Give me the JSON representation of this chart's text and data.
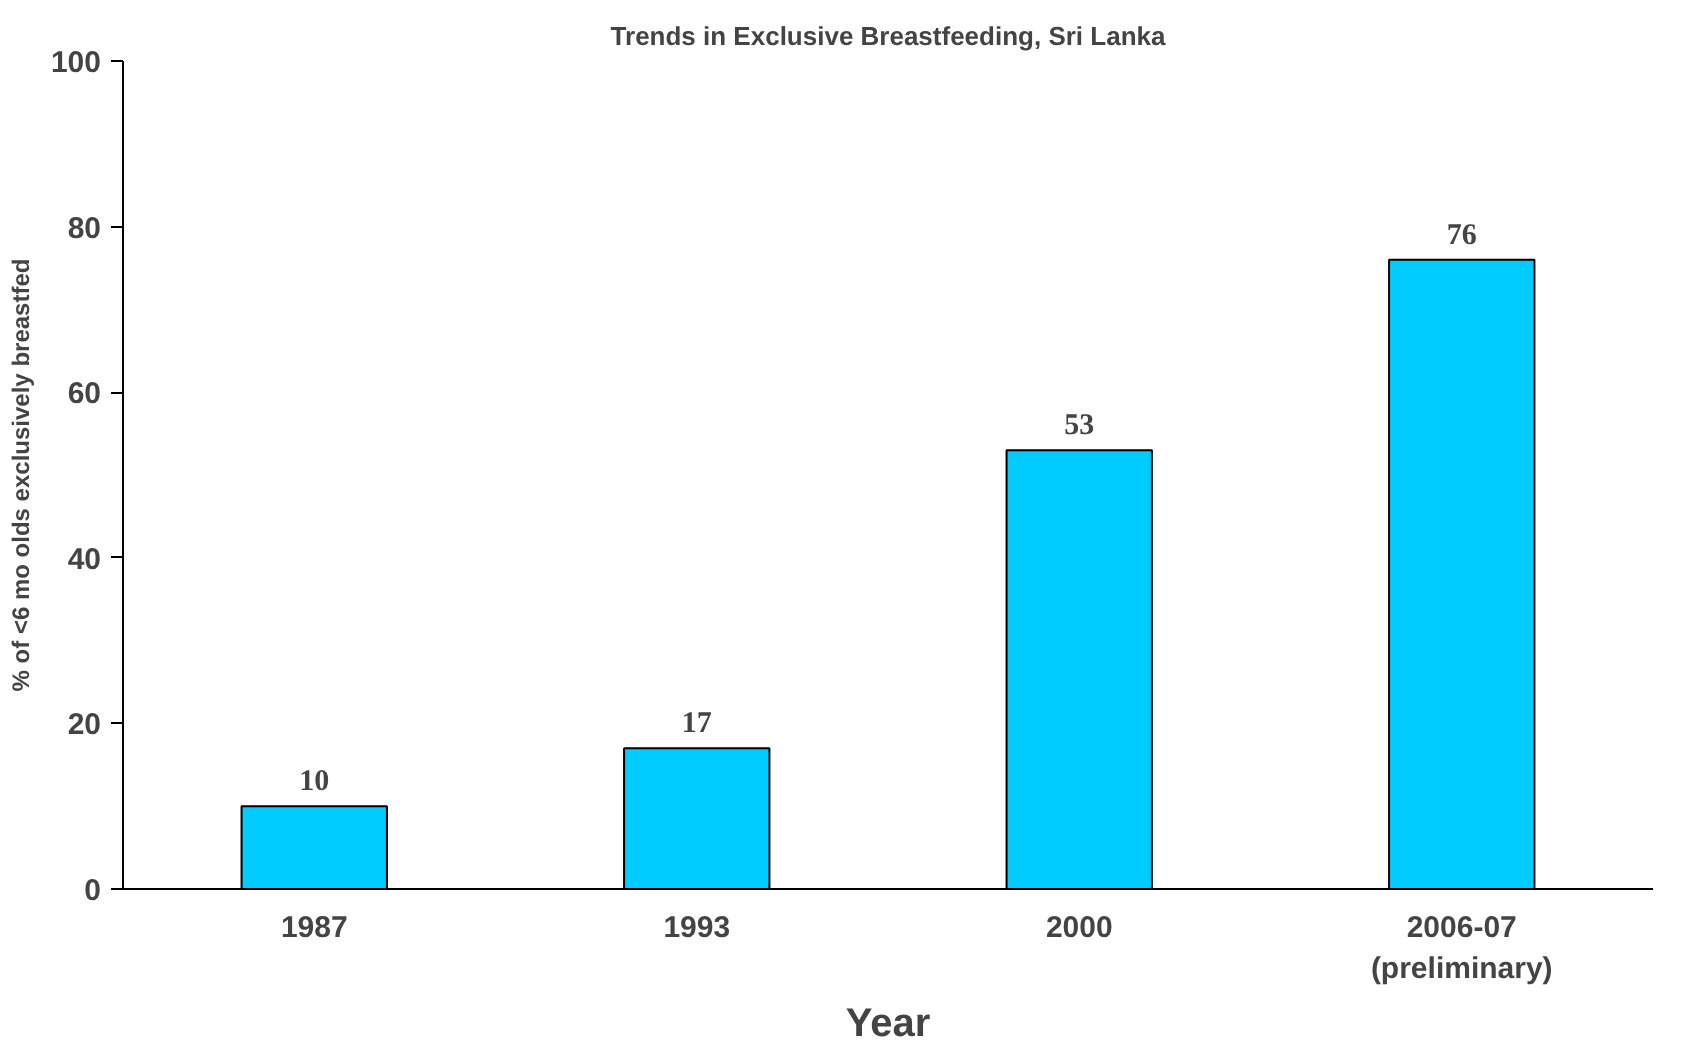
{
  "chart_data": {
    "type": "bar",
    "title": "Trends in Exclusive Breastfeeding, Sri Lanka",
    "xlabel": "Year",
    "ylabel": "% of <6 mo olds exclusively breastfed",
    "categories": [
      "1987",
      "1993",
      "2000",
      "2006-07\n(preliminary)"
    ],
    "values": [
      10,
      17,
      53,
      76
    ],
    "color": "#00ccff",
    "ylim": [
      0,
      100
    ],
    "yticks": [
      0,
      20,
      40,
      60,
      80,
      100
    ],
    "grid": false,
    "data_labels": true
  }
}
